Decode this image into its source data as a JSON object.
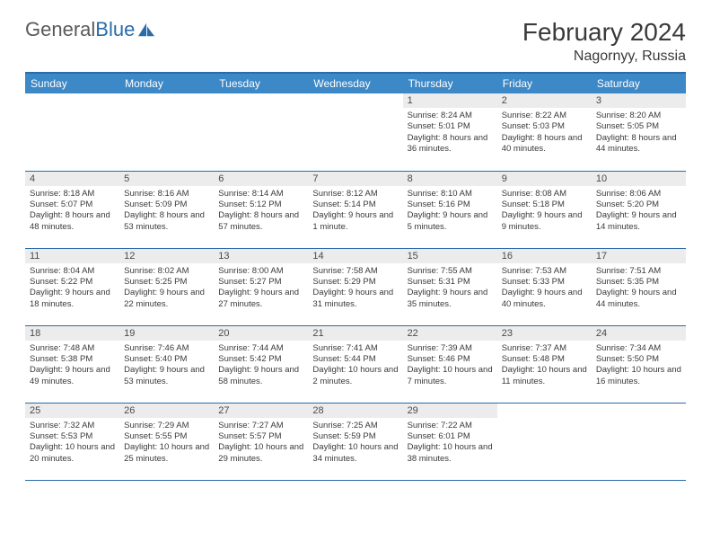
{
  "brand": {
    "part1": "General",
    "part2": "Blue"
  },
  "title": "February 2024",
  "location": "Nagornyy, Russia",
  "headers": [
    "Sunday",
    "Monday",
    "Tuesday",
    "Wednesday",
    "Thursday",
    "Friday",
    "Saturday"
  ],
  "colors": {
    "header_bg": "#3d88c7",
    "rule": "#2b6ca8",
    "daynum_bg": "#ececec"
  },
  "weeks": [
    [
      {
        "n": "",
        "sr": "",
        "ss": "",
        "dl": ""
      },
      {
        "n": "",
        "sr": "",
        "ss": "",
        "dl": ""
      },
      {
        "n": "",
        "sr": "",
        "ss": "",
        "dl": ""
      },
      {
        "n": "",
        "sr": "",
        "ss": "",
        "dl": ""
      },
      {
        "n": "1",
        "sr": "Sunrise: 8:24 AM",
        "ss": "Sunset: 5:01 PM",
        "dl": "Daylight: 8 hours and 36 minutes."
      },
      {
        "n": "2",
        "sr": "Sunrise: 8:22 AM",
        "ss": "Sunset: 5:03 PM",
        "dl": "Daylight: 8 hours and 40 minutes."
      },
      {
        "n": "3",
        "sr": "Sunrise: 8:20 AM",
        "ss": "Sunset: 5:05 PM",
        "dl": "Daylight: 8 hours and 44 minutes."
      }
    ],
    [
      {
        "n": "4",
        "sr": "Sunrise: 8:18 AM",
        "ss": "Sunset: 5:07 PM",
        "dl": "Daylight: 8 hours and 48 minutes."
      },
      {
        "n": "5",
        "sr": "Sunrise: 8:16 AM",
        "ss": "Sunset: 5:09 PM",
        "dl": "Daylight: 8 hours and 53 minutes."
      },
      {
        "n": "6",
        "sr": "Sunrise: 8:14 AM",
        "ss": "Sunset: 5:12 PM",
        "dl": "Daylight: 8 hours and 57 minutes."
      },
      {
        "n": "7",
        "sr": "Sunrise: 8:12 AM",
        "ss": "Sunset: 5:14 PM",
        "dl": "Daylight: 9 hours and 1 minute."
      },
      {
        "n": "8",
        "sr": "Sunrise: 8:10 AM",
        "ss": "Sunset: 5:16 PM",
        "dl": "Daylight: 9 hours and 5 minutes."
      },
      {
        "n": "9",
        "sr": "Sunrise: 8:08 AM",
        "ss": "Sunset: 5:18 PM",
        "dl": "Daylight: 9 hours and 9 minutes."
      },
      {
        "n": "10",
        "sr": "Sunrise: 8:06 AM",
        "ss": "Sunset: 5:20 PM",
        "dl": "Daylight: 9 hours and 14 minutes."
      }
    ],
    [
      {
        "n": "11",
        "sr": "Sunrise: 8:04 AM",
        "ss": "Sunset: 5:22 PM",
        "dl": "Daylight: 9 hours and 18 minutes."
      },
      {
        "n": "12",
        "sr": "Sunrise: 8:02 AM",
        "ss": "Sunset: 5:25 PM",
        "dl": "Daylight: 9 hours and 22 minutes."
      },
      {
        "n": "13",
        "sr": "Sunrise: 8:00 AM",
        "ss": "Sunset: 5:27 PM",
        "dl": "Daylight: 9 hours and 27 minutes."
      },
      {
        "n": "14",
        "sr": "Sunrise: 7:58 AM",
        "ss": "Sunset: 5:29 PM",
        "dl": "Daylight: 9 hours and 31 minutes."
      },
      {
        "n": "15",
        "sr": "Sunrise: 7:55 AM",
        "ss": "Sunset: 5:31 PM",
        "dl": "Daylight: 9 hours and 35 minutes."
      },
      {
        "n": "16",
        "sr": "Sunrise: 7:53 AM",
        "ss": "Sunset: 5:33 PM",
        "dl": "Daylight: 9 hours and 40 minutes."
      },
      {
        "n": "17",
        "sr": "Sunrise: 7:51 AM",
        "ss": "Sunset: 5:35 PM",
        "dl": "Daylight: 9 hours and 44 minutes."
      }
    ],
    [
      {
        "n": "18",
        "sr": "Sunrise: 7:48 AM",
        "ss": "Sunset: 5:38 PM",
        "dl": "Daylight: 9 hours and 49 minutes."
      },
      {
        "n": "19",
        "sr": "Sunrise: 7:46 AM",
        "ss": "Sunset: 5:40 PM",
        "dl": "Daylight: 9 hours and 53 minutes."
      },
      {
        "n": "20",
        "sr": "Sunrise: 7:44 AM",
        "ss": "Sunset: 5:42 PM",
        "dl": "Daylight: 9 hours and 58 minutes."
      },
      {
        "n": "21",
        "sr": "Sunrise: 7:41 AM",
        "ss": "Sunset: 5:44 PM",
        "dl": "Daylight: 10 hours and 2 minutes."
      },
      {
        "n": "22",
        "sr": "Sunrise: 7:39 AM",
        "ss": "Sunset: 5:46 PM",
        "dl": "Daylight: 10 hours and 7 minutes."
      },
      {
        "n": "23",
        "sr": "Sunrise: 7:37 AM",
        "ss": "Sunset: 5:48 PM",
        "dl": "Daylight: 10 hours and 11 minutes."
      },
      {
        "n": "24",
        "sr": "Sunrise: 7:34 AM",
        "ss": "Sunset: 5:50 PM",
        "dl": "Daylight: 10 hours and 16 minutes."
      }
    ],
    [
      {
        "n": "25",
        "sr": "Sunrise: 7:32 AM",
        "ss": "Sunset: 5:53 PM",
        "dl": "Daylight: 10 hours and 20 minutes."
      },
      {
        "n": "26",
        "sr": "Sunrise: 7:29 AM",
        "ss": "Sunset: 5:55 PM",
        "dl": "Daylight: 10 hours and 25 minutes."
      },
      {
        "n": "27",
        "sr": "Sunrise: 7:27 AM",
        "ss": "Sunset: 5:57 PM",
        "dl": "Daylight: 10 hours and 29 minutes."
      },
      {
        "n": "28",
        "sr": "Sunrise: 7:25 AM",
        "ss": "Sunset: 5:59 PM",
        "dl": "Daylight: 10 hours and 34 minutes."
      },
      {
        "n": "29",
        "sr": "Sunrise: 7:22 AM",
        "ss": "Sunset: 6:01 PM",
        "dl": "Daylight: 10 hours and 38 minutes."
      },
      {
        "n": "",
        "sr": "",
        "ss": "",
        "dl": ""
      },
      {
        "n": "",
        "sr": "",
        "ss": "",
        "dl": ""
      }
    ]
  ]
}
